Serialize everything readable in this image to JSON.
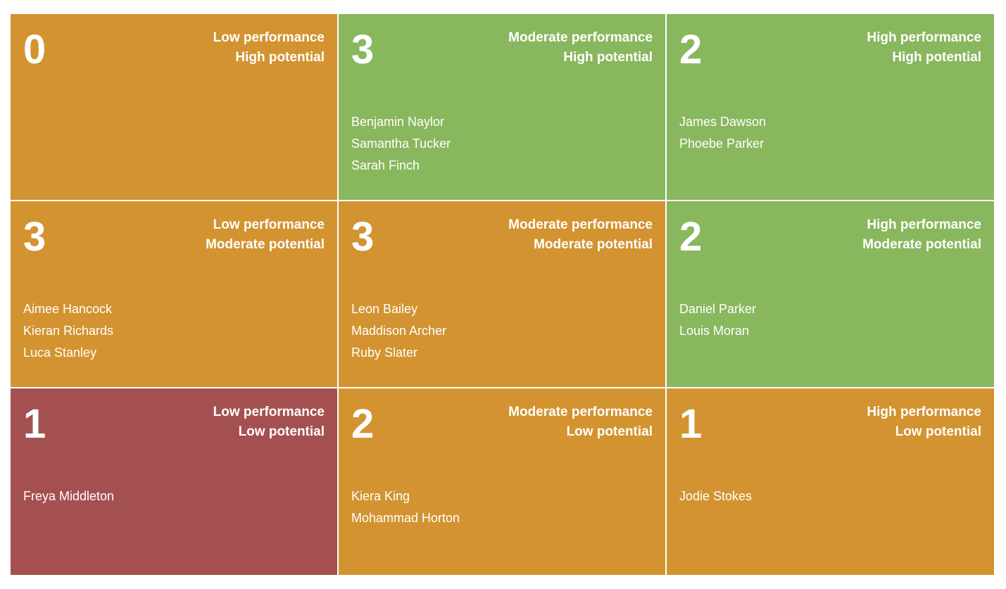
{
  "cells": [
    {
      "count": "0",
      "performance": "Low performance",
      "potential": "High potential",
      "color": "#d29330",
      "names": []
    },
    {
      "count": "3",
      "performance": "Moderate performance",
      "potential": "High potential",
      "color": "#89b75e",
      "names": [
        "Benjamin Naylor",
        "Samantha Tucker",
        "Sarah Finch"
      ]
    },
    {
      "count": "2",
      "performance": "High performance",
      "potential": "High potential",
      "color": "#89b75e",
      "names": [
        "James Dawson",
        "Phoebe Parker"
      ]
    },
    {
      "count": "3",
      "performance": "Low performance",
      "potential": "Moderate potential",
      "color": "#d29330",
      "names": [
        "Aimee Hancock",
        "Kieran Richards",
        "Luca Stanley"
      ]
    },
    {
      "count": "3",
      "performance": "Moderate performance",
      "potential": "Moderate potential",
      "color": "#d29330",
      "names": [
        "Leon Bailey",
        "Maddison Archer",
        "Ruby Slater"
      ]
    },
    {
      "count": "2",
      "performance": "High performance",
      "potential": "Moderate potential",
      "color": "#89b75e",
      "names": [
        "Daniel Parker",
        "Louis Moran"
      ]
    },
    {
      "count": "1",
      "performance": "Low performance",
      "potential": "Low potential",
      "color": "#a55050",
      "names": [
        "Freya Middleton"
      ]
    },
    {
      "count": "2",
      "performance": "Moderate performance",
      "potential": "Low potential",
      "color": "#d29330",
      "names": [
        "Kiera King",
        "Mohammad Horton"
      ]
    },
    {
      "count": "1",
      "performance": "High performance",
      "potential": "Low potential",
      "color": "#d29330",
      "names": [
        "Jodie Stokes"
      ]
    }
  ]
}
